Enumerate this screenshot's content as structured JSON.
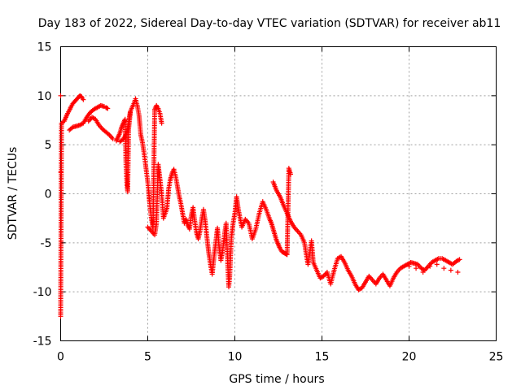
{
  "chart_data": {
    "type": "scatter",
    "title": "Day 183 of 2022, Sidereal Day-to-day VTEC variation (SDTVAR) for receiver ab11",
    "xlabel": "GPS time / hours",
    "ylabel": "SDTVAR / TECUs",
    "xlim": [
      0,
      25
    ],
    "ylim": [
      -15,
      15
    ],
    "xticks": [
      0,
      5,
      10,
      15,
      20,
      25
    ],
    "yticks": [
      -15,
      -10,
      -5,
      0,
      5,
      10,
      15
    ],
    "grid": true,
    "marker": "+",
    "series": [
      {
        "name": "SDTVAR",
        "color": "#ff0000",
        "x": [
          0.0,
          0.0,
          0.0,
          0.05,
          0.2,
          0.3,
          0.4,
          0.5,
          0.6,
          0.7,
          0.8,
          0.9,
          1.0,
          1.1,
          1.2,
          1.3,
          0.5,
          0.7,
          0.9,
          1.1,
          1.3,
          1.5,
          1.7,
          1.9,
          2.1,
          2.3,
          2.5,
          1.6,
          1.8,
          2.0,
          2.2,
          2.4,
          2.6,
          2.8,
          3.0,
          2.6,
          2.7,
          3.2,
          3.3,
          3.4,
          3.5,
          3.6,
          3.7,
          3.75,
          3.8,
          3.85,
          3.9,
          3.95,
          4.0,
          3.4,
          3.6,
          3.8,
          4.0,
          4.2,
          4.3,
          4.4,
          4.5,
          4.55,
          4.6,
          4.7,
          4.8,
          4.9,
          5.0,
          5.05,
          5.1,
          5.2,
          5.3,
          5.4,
          5.5,
          5.6,
          5.7,
          5.8,
          5.0,
          5.2,
          5.4,
          5.5,
          5.6,
          5.7,
          5.8,
          5.9,
          6.0,
          6.1,
          6.2,
          6.3,
          6.4,
          6.5,
          6.6,
          6.7,
          6.8,
          6.9,
          7.0,
          7.1,
          7.2,
          7.3,
          7.4,
          7.5,
          7.6,
          7.7,
          7.8,
          7.9,
          8.0,
          8.1,
          8.2,
          8.3,
          8.4,
          8.5,
          8.6,
          8.7,
          8.8,
          8.9,
          9.0,
          9.1,
          9.2,
          9.3,
          9.4,
          9.5,
          9.6,
          9.65,
          9.7,
          9.8,
          9.9,
          10.0,
          10.1,
          10.2,
          10.4,
          10.6,
          10.8,
          11.0,
          11.2,
          11.4,
          11.6,
          11.8,
          12.0,
          12.1,
          12.2,
          12.3,
          12.4,
          12.5,
          12.6,
          12.7,
          12.8,
          12.9,
          13.0,
          13.1,
          13.2,
          12.2,
          12.4,
          12.6,
          12.8,
          13.0,
          13.2,
          13.4,
          13.6,
          13.8,
          14.0,
          14.1,
          14.2,
          14.3,
          14.4,
          14.5,
          14.7,
          14.9,
          15.1,
          15.3,
          15.5,
          15.7,
          15.9,
          16.1,
          16.3,
          16.5,
          16.7,
          16.9,
          17.1,
          17.3,
          17.5,
          17.7,
          17.9,
          18.1,
          18.3,
          18.5,
          18.7,
          18.9,
          19.1,
          19.3,
          19.5,
          19.7,
          19.9,
          20.1,
          20.3,
          20.5,
          20.7,
          20.9,
          21.1,
          21.3,
          21.5,
          21.7,
          21.9,
          22.1,
          22.3,
          22.5,
          22.7,
          22.9,
          20.0,
          20.4,
          20.8,
          21.2,
          21.6,
          22.0,
          22.4,
          22.8
        ],
        "y": [
          10.0,
          2.2,
          -12.5,
          7.2,
          7.4,
          7.8,
          8.2,
          8.5,
          8.9,
          9.2,
          9.4,
          9.6,
          9.8,
          10.0,
          9.9,
          9.6,
          6.5,
          6.8,
          6.9,
          7.0,
          7.2,
          7.8,
          8.3,
          8.6,
          8.8,
          9.0,
          8.9,
          7.4,
          7.8,
          7.6,
          7.0,
          6.6,
          6.3,
          6.0,
          5.6,
          8.8,
          8.7,
          5.4,
          5.8,
          6.2,
          6.8,
          7.2,
          7.6,
          3.0,
          1.0,
          0.2,
          6.6,
          7.4,
          8.3,
          5.3,
          5.6,
          6.2,
          8.4,
          9.2,
          9.7,
          9.0,
          8.0,
          7.0,
          6.0,
          5.2,
          4.0,
          2.6,
          1.2,
          0.3,
          -0.8,
          -2.4,
          -3.5,
          8.6,
          9.0,
          8.7,
          8.2,
          7.2,
          -3.4,
          -3.8,
          -4.2,
          -3.0,
          3.0,
          1.5,
          0.0,
          -2.5,
          -2.0,
          -1.5,
          0.5,
          1.5,
          2.1,
          2.5,
          1.8,
          0.8,
          -0.2,
          -1.0,
          -2.0,
          -3.0,
          -2.6,
          -3.2,
          -3.6,
          -2.2,
          -1.4,
          -2.8,
          -4.0,
          -4.6,
          -3.8,
          -2.6,
          -1.6,
          -2.8,
          -4.5,
          -6.0,
          -7.2,
          -8.2,
          -6.5,
          -5.0,
          -3.5,
          -5.5,
          -6.8,
          -5.8,
          -4.2,
          -3.0,
          -7.5,
          -9.5,
          -8.6,
          -4.5,
          -3.0,
          -2.0,
          -0.3,
          -1.6,
          -3.4,
          -2.6,
          -3.0,
          -4.6,
          -3.6,
          -2.0,
          -0.8,
          -1.6,
          -2.6,
          -3.0,
          -3.6,
          -4.2,
          -4.8,
          -5.2,
          -5.6,
          -5.9,
          -6.0,
          -6.1,
          -6.2,
          2.6,
          2.0,
          1.2,
          0.3,
          -0.3,
          -1.2,
          -2.0,
          -2.8,
          -3.4,
          -3.8,
          -4.2,
          -5.0,
          -6.2,
          -7.2,
          -6.0,
          -4.8,
          -7.0,
          -7.8,
          -8.6,
          -8.4,
          -8.0,
          -9.2,
          -7.8,
          -6.6,
          -6.4,
          -7.0,
          -7.8,
          -8.4,
          -9.2,
          -9.8,
          -9.6,
          -9.0,
          -8.4,
          -8.8,
          -9.2,
          -8.6,
          -8.2,
          -8.8,
          -9.4,
          -8.6,
          -8.0,
          -7.6,
          -7.4,
          -7.2,
          -7.0,
          -7.1,
          -7.2,
          -7.6,
          -7.8,
          -7.4,
          -7.0,
          -6.8,
          -6.6,
          -6.6,
          -6.8,
          -7.0,
          -7.2,
          -6.9,
          -6.7,
          -7.4,
          -7.6,
          -8.0,
          -7.4,
          -7.2,
          -7.6,
          -7.8,
          -8.0
        ]
      }
    ]
  }
}
